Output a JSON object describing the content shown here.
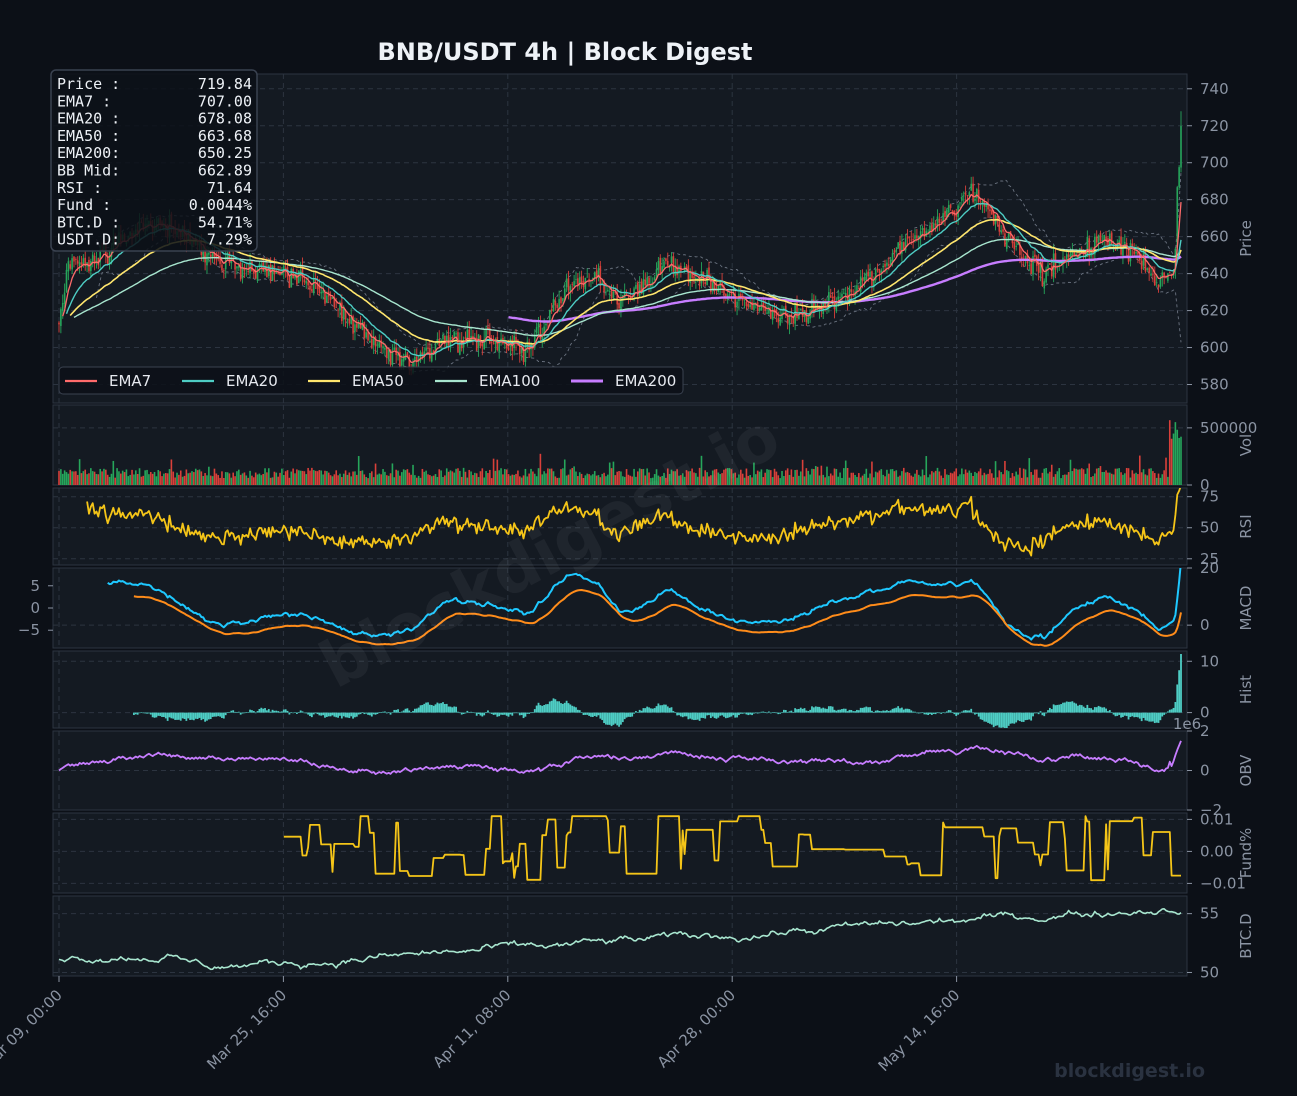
{
  "title": "BNB/USDT  4h  |  Block Digest",
  "watermark": "blockdigest.io",
  "footer_brand": "blockdigest.io",
  "colors": {
    "background": "#0c1017",
    "panel": "#141a22",
    "grid": "#2c3440",
    "up": "#26a65b",
    "down": "#d9403a",
    "ema7": "#ff6b6b",
    "ema20": "#4ecdc4",
    "ema50": "#ffe66d",
    "ema100": "#a8e6cf",
    "ema200": "#c77dff",
    "rsi": "#f5c518",
    "macd": "#1ec8ff",
    "macd_signal": "#ff8c1a",
    "hist": "#4ecdc4",
    "obv": "#c77dff",
    "funding": "#f5c518",
    "btcd": "#a8e6cf"
  },
  "info_box": [
    {
      "label": "Price :",
      "value": "719.84"
    },
    {
      "label": "EMA7  :",
      "value": "707.00"
    },
    {
      "label": "EMA20 :",
      "value": "678.08"
    },
    {
      "label": "EMA50 :",
      "value": "663.68"
    },
    {
      "label": "EMA200:",
      "value": "650.25"
    },
    {
      "label": "BB Mid:",
      "value": "662.89"
    },
    {
      "label": "RSI   :",
      "value": "71.64"
    },
    {
      "label": "Fund  :",
      "value": "0.0044%"
    },
    {
      "label": "BTC.D :",
      "value": "54.71%"
    },
    {
      "label": "USDT.D:",
      "value": "7.29%"
    }
  ],
  "legend": [
    {
      "name": "EMA7",
      "color": "#ff6b6b"
    },
    {
      "name": "EMA20",
      "color": "#4ecdc4"
    },
    {
      "name": "EMA50",
      "color": "#ffe66d"
    },
    {
      "name": "EMA100",
      "color": "#a8e6cf"
    },
    {
      "name": "EMA200",
      "color": "#c77dff"
    }
  ],
  "x_ticks": [
    "Mar 09, 00:00",
    "Mar 25, 16:00",
    "Apr 11, 08:00",
    "Apr 28, 00:00",
    "May 14, 16:00"
  ],
  "chart_data": {
    "type": "line",
    "xlabel": "",
    "candles": 600,
    "panels": [
      {
        "key": "price",
        "ylabel": "Price",
        "side": "right",
        "ylim": [
          570,
          748
        ],
        "ticks": [
          "580",
          "600",
          "620",
          "640",
          "660",
          "680",
          "700",
          "720",
          "740"
        ],
        "series": [
          {
            "name": "EMA7",
            "last": 707.0
          },
          {
            "name": "EMA20",
            "last": 678.08
          },
          {
            "name": "EMA50",
            "last": 663.68
          },
          {
            "name": "EMA100",
            "last": 658.0
          },
          {
            "name": "EMA200",
            "last": 650.25
          }
        ],
        "price_path": [
          [
            0,
            612
          ],
          [
            5,
            645
          ],
          [
            25,
            650
          ],
          [
            45,
            668
          ],
          [
            70,
            660
          ],
          [
            95,
            642
          ],
          [
            125,
            640
          ],
          [
            140,
            630
          ],
          [
            165,
            605
          ],
          [
            185,
            590
          ],
          [
            205,
            603
          ],
          [
            230,
            605
          ],
          [
            250,
            597
          ],
          [
            270,
            630
          ],
          [
            285,
            640
          ],
          [
            300,
            625
          ],
          [
            325,
            645
          ],
          [
            345,
            635
          ],
          [
            365,
            625
          ],
          [
            395,
            617
          ],
          [
            420,
            628
          ],
          [
            450,
            655
          ],
          [
            470,
            668
          ],
          [
            490,
            685
          ],
          [
            505,
            660
          ],
          [
            525,
            641
          ],
          [
            545,
            652
          ],
          [
            560,
            660
          ],
          [
            575,
            650
          ],
          [
            585,
            636
          ],
          [
            595,
            640
          ],
          [
            598,
            700
          ],
          [
            599,
            719.84
          ]
        ]
      },
      {
        "key": "vol",
        "ylabel": "Vol",
        "side": "right",
        "ylim": [
          0,
          700000
        ],
        "ticks": [
          "0",
          "500000"
        ]
      },
      {
        "key": "rsi",
        "ylabel": "RSI",
        "side": "right",
        "ylim": [
          20,
          82
        ],
        "ticks": [
          "25",
          "50",
          "75"
        ]
      },
      {
        "key": "macd",
        "ylabel": "MACD",
        "side": "right",
        "ylim": [
          -8,
          20
        ],
        "ticks": [
          "0",
          "20"
        ],
        "left_ticks": [
          "−5",
          "0",
          "5"
        ]
      },
      {
        "key": "hist",
        "ylabel": "Hist",
        "side": "right",
        "ylim": [
          -3,
          12
        ],
        "ticks": [
          "0",
          "10"
        ]
      },
      {
        "key": "obv",
        "ylabel": "OBV",
        "side": "right",
        "ylim": [
          -2,
          2
        ],
        "ticks": [
          "−2",
          "0",
          "2"
        ],
        "offset_label": "1e6"
      },
      {
        "key": "funding",
        "ylabel": "Fund%",
        "side": "right",
        "ylim": [
          -0.013,
          0.012
        ],
        "ticks": [
          "−0.01",
          "0.00",
          "0.01"
        ]
      },
      {
        "key": "btcd",
        "ylabel": "BTC.D",
        "side": "right",
        "ylim": [
          49.7,
          56.5
        ],
        "ticks": [
          "50",
          "55"
        ]
      }
    ]
  }
}
